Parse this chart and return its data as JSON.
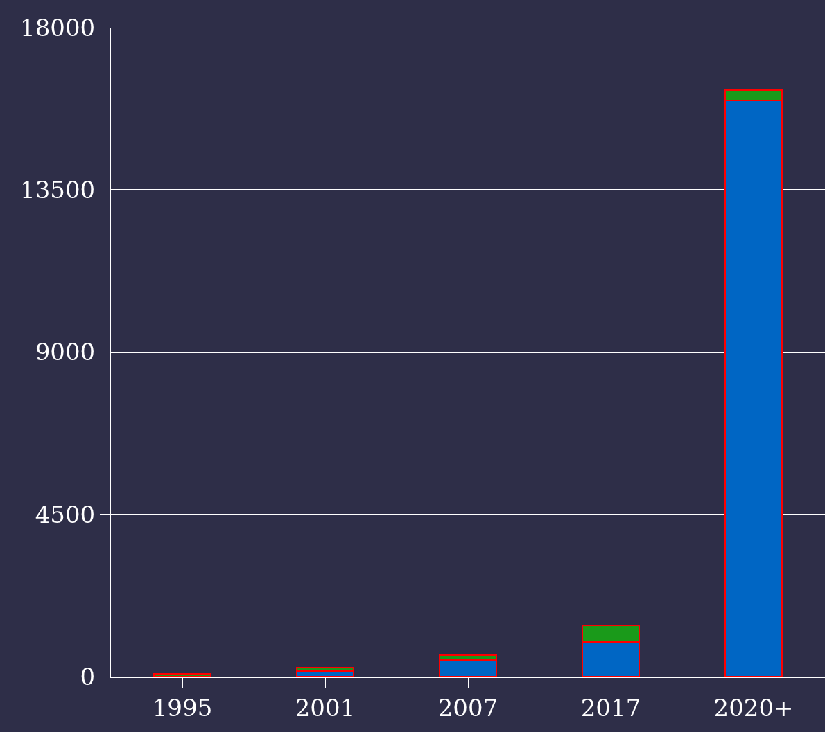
{
  "chart_data": {
    "type": "bar",
    "stacked": true,
    "categories": [
      "1995",
      "2001",
      "2007",
      "2017",
      "2020+"
    ],
    "series": [
      {
        "color": "#0066c4",
        "values": [
          null,
          150,
          470,
          960,
          15980
        ]
      },
      {
        "color": "#1a9a1a",
        "values": [
          80,
          100,
          130,
          460,
          300
        ]
      }
    ],
    "ylim": [
      0,
      18000
    ],
    "yticks": [
      0,
      4500,
      9000,
      13500,
      18000
    ],
    "grid": "y"
  }
}
